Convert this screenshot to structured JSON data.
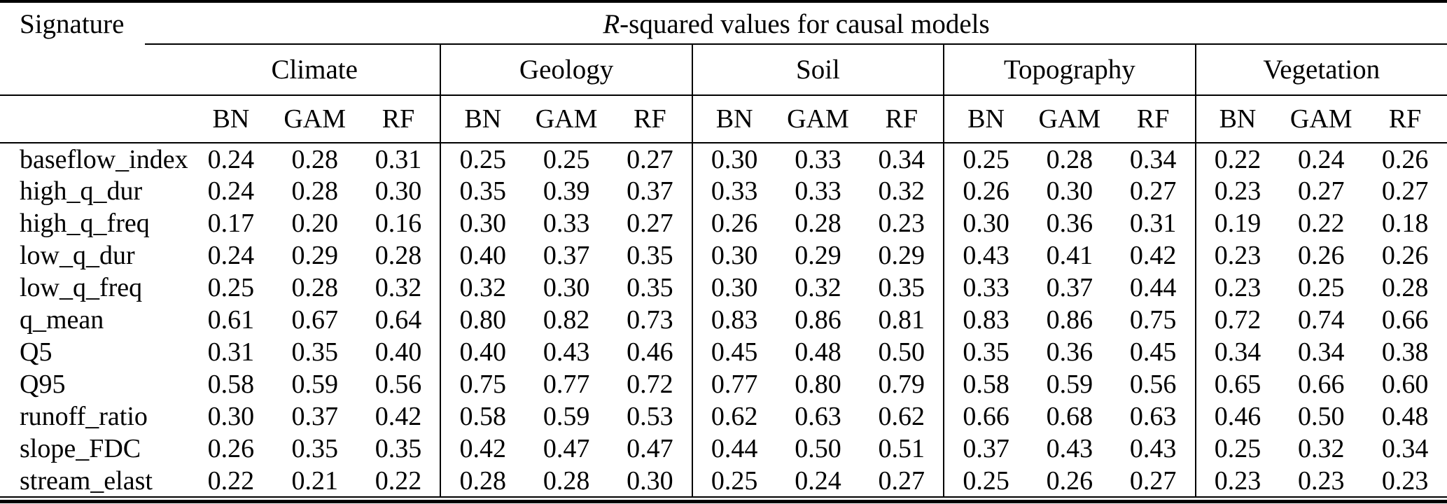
{
  "colors": {
    "text": "#000000",
    "background": "#ffffff",
    "rule": "#000000"
  },
  "table": {
    "corner_label": "Signature",
    "title_italic": "R",
    "title_rest": "-squared values for causal models",
    "models": [
      "BN",
      "GAM",
      "RF"
    ],
    "groups": [
      {
        "label": "Climate"
      },
      {
        "label": "Geology"
      },
      {
        "label": "Soil"
      },
      {
        "label": "Topography"
      },
      {
        "label": "Vegetation"
      }
    ],
    "rows": [
      {
        "signature": "baseflow_index",
        "values": [
          "0.24",
          "0.28",
          "0.31",
          "0.25",
          "0.25",
          "0.27",
          "0.30",
          "0.33",
          "0.34",
          "0.25",
          "0.28",
          "0.34",
          "0.22",
          "0.24",
          "0.26"
        ]
      },
      {
        "signature": "high_q_dur",
        "values": [
          "0.24",
          "0.28",
          "0.30",
          "0.35",
          "0.39",
          "0.37",
          "0.33",
          "0.33",
          "0.32",
          "0.26",
          "0.30",
          "0.27",
          "0.23",
          "0.27",
          "0.27"
        ]
      },
      {
        "signature": "high_q_freq",
        "values": [
          "0.17",
          "0.20",
          "0.16",
          "0.30",
          "0.33",
          "0.27",
          "0.26",
          "0.28",
          "0.23",
          "0.30",
          "0.36",
          "0.31",
          "0.19",
          "0.22",
          "0.18"
        ]
      },
      {
        "signature": "low_q_dur",
        "values": [
          "0.24",
          "0.29",
          "0.28",
          "0.40",
          "0.37",
          "0.35",
          "0.30",
          "0.29",
          "0.29",
          "0.43",
          "0.41",
          "0.42",
          "0.23",
          "0.26",
          "0.26"
        ]
      },
      {
        "signature": "low_q_freq",
        "values": [
          "0.25",
          "0.28",
          "0.32",
          "0.32",
          "0.30",
          "0.35",
          "0.30",
          "0.32",
          "0.35",
          "0.33",
          "0.37",
          "0.44",
          "0.23",
          "0.25",
          "0.28"
        ]
      },
      {
        "signature": "q_mean",
        "values": [
          "0.61",
          "0.67",
          "0.64",
          "0.80",
          "0.82",
          "0.73",
          "0.83",
          "0.86",
          "0.81",
          "0.83",
          "0.86",
          "0.75",
          "0.72",
          "0.74",
          "0.66"
        ]
      },
      {
        "signature": "Q5",
        "values": [
          "0.31",
          "0.35",
          "0.40",
          "0.40",
          "0.43",
          "0.46",
          "0.45",
          "0.48",
          "0.50",
          "0.35",
          "0.36",
          "0.45",
          "0.34",
          "0.34",
          "0.38"
        ]
      },
      {
        "signature": "Q95",
        "values": [
          "0.58",
          "0.59",
          "0.56",
          "0.75",
          "0.77",
          "0.72",
          "0.77",
          "0.80",
          "0.79",
          "0.58",
          "0.59",
          "0.56",
          "0.65",
          "0.66",
          "0.60"
        ]
      },
      {
        "signature": "runoff_ratio",
        "values": [
          "0.30",
          "0.37",
          "0.42",
          "0.58",
          "0.59",
          "0.53",
          "0.62",
          "0.63",
          "0.62",
          "0.66",
          "0.68",
          "0.63",
          "0.46",
          "0.50",
          "0.48"
        ]
      },
      {
        "signature": "slope_FDC",
        "values": [
          "0.26",
          "0.35",
          "0.35",
          "0.42",
          "0.47",
          "0.47",
          "0.44",
          "0.50",
          "0.51",
          "0.37",
          "0.43",
          "0.43",
          "0.25",
          "0.32",
          "0.34"
        ]
      },
      {
        "signature": "stream_elast",
        "values": [
          "0.22",
          "0.21",
          "0.22",
          "0.28",
          "0.28",
          "0.30",
          "0.25",
          "0.24",
          "0.27",
          "0.25",
          "0.26",
          "0.27",
          "0.23",
          "0.23",
          "0.23"
        ]
      }
    ]
  }
}
